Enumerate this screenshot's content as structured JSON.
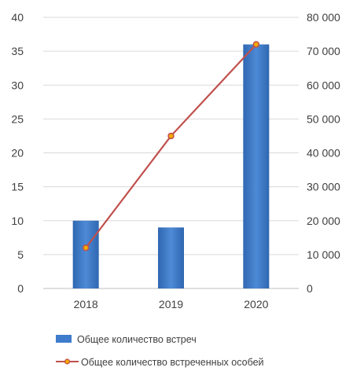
{
  "chart_data": {
    "type": "bar+line",
    "categories": [
      "2018",
      "2019",
      "2020"
    ],
    "series": [
      {
        "name": "Общее количество встреч",
        "type": "bar",
        "axis": "left",
        "values": [
          10,
          9,
          36
        ],
        "color": "#3f7ccb"
      },
      {
        "name": "Общее количество встреченных особей",
        "type": "line",
        "axis": "right",
        "values": [
          12000,
          45000,
          72000
        ],
        "color": "#c0504d"
      }
    ],
    "y_left": {
      "ylim": [
        0,
        40
      ],
      "ticks": [
        "0",
        "5",
        "10",
        "15",
        "20",
        "25",
        "30",
        "35",
        "40"
      ]
    },
    "y_right": {
      "ylim": [
        0,
        80000
      ],
      "ticks": [
        "0",
        "10 000",
        "20 000",
        "30 000",
        "40 000",
        "50 000",
        "60 000",
        "70 000",
        "80 000"
      ]
    },
    "grid": true,
    "legend_position": "bottom"
  }
}
